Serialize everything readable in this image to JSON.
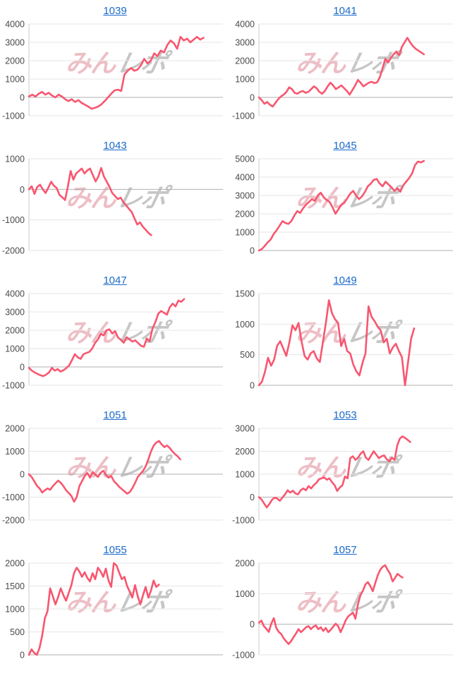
{
  "watermark": {
    "part1": "みん",
    "part2": "レポ"
  },
  "colors": {
    "line": "#f8566f",
    "link": "#1b6ac9",
    "grid": "#e6e6e6",
    "zero_line": "#b0b0b0",
    "axis_line": "#cccccc",
    "tick_text": "#4a4a4a",
    "watermark_pink": "#dd7f8c",
    "watermark_gray": "#8f8f8f"
  },
  "chart_data": [
    {
      "type": "line",
      "title": "1039",
      "xlabel": "",
      "ylabel": "",
      "ylim": [
        -1000,
        4000
      ],
      "yticks": [
        4000,
        3000,
        2000,
        1000,
        0,
        -1000
      ],
      "grid": true,
      "x_end": 0.9,
      "values": [
        50,
        150,
        50,
        200,
        300,
        150,
        250,
        100,
        0,
        150,
        50,
        -100,
        -200,
        -100,
        -250,
        -150,
        -300,
        -400,
        -500,
        -620,
        -570,
        -500,
        -380,
        -200,
        0,
        200,
        380,
        420,
        350,
        1250,
        1450,
        1600,
        1450,
        1520,
        1750,
        2100,
        1850,
        2000,
        2400,
        2250,
        2550,
        2450,
        2850,
        3100,
        2950,
        2650,
        3300,
        3100,
        3200,
        3000,
        3150,
        3300,
        3150,
        3250
      ]
    },
    {
      "type": "line",
      "title": "1041",
      "xlabel": "",
      "ylabel": "",
      "ylim": [
        -1000,
        4000
      ],
      "yticks": [
        4000,
        3000,
        2000,
        1000,
        0,
        -1000
      ],
      "grid": true,
      "x_end": 0.85,
      "values": [
        0,
        -150,
        -350,
        -250,
        -400,
        -500,
        -300,
        -100,
        50,
        150,
        300,
        550,
        450,
        250,
        200,
        300,
        350,
        250,
        300,
        450,
        600,
        500,
        300,
        200,
        350,
        600,
        800,
        650,
        450,
        550,
        650,
        500,
        350,
        150,
        400,
        650,
        950,
        800,
        600,
        700,
        800,
        850,
        780,
        820,
        1100,
        1600,
        2100,
        1900,
        2150,
        2350,
        2500,
        2300,
        2750,
        3000,
        3250,
        3000,
        2800,
        2650,
        2550,
        2450,
        2350
      ]
    },
    {
      "type": "line",
      "title": "1043",
      "xlabel": "",
      "ylabel": "",
      "ylim": [
        -2000,
        1000
      ],
      "yticks": [
        1000,
        0,
        -1000,
        -2000
      ],
      "grid": true,
      "x_end": 0.63,
      "values": [
        0,
        100,
        -150,
        80,
        150,
        0,
        -120,
        60,
        250,
        120,
        40,
        -180,
        -260,
        -350,
        80,
        600,
        320,
        520,
        600,
        680,
        520,
        620,
        680,
        470,
        260,
        420,
        700,
        420,
        250,
        80,
        -120,
        -220,
        -320,
        -270,
        -420,
        -520,
        -640,
        -740,
        -950,
        -1150,
        -1080,
        -1220,
        -1320,
        -1420,
        -1500
      ]
    },
    {
      "type": "line",
      "title": "1045",
      "xlabel": "",
      "ylabel": "",
      "ylim": [
        0,
        5000
      ],
      "yticks": [
        5000,
        4000,
        3000,
        2000,
        1000,
        0
      ],
      "grid": true,
      "x_end": 0.85,
      "values": [
        0,
        80,
        250,
        450,
        600,
        900,
        1100,
        1350,
        1600,
        1500,
        1450,
        1600,
        1900,
        2150,
        2050,
        2300,
        2500,
        2650,
        2800,
        2700,
        3000,
        3150,
        2900,
        2750,
        2650,
        2350,
        2000,
        2250,
        2500,
        2600,
        2850,
        3100,
        3250,
        3000,
        2800,
        2950,
        3200,
        3500,
        3650,
        3850,
        3900,
        3650,
        3500,
        3750,
        3600,
        3450,
        3250,
        3400,
        3200,
        3550,
        3750,
        3950,
        4200,
        4650,
        4850,
        4800,
        4880
      ]
    },
    {
      "type": "line",
      "title": "1047",
      "xlabel": "",
      "ylabel": "",
      "ylim": [
        -1000,
        4000
      ],
      "yticks": [
        4000,
        3000,
        2000,
        1000,
        0,
        -1000
      ],
      "grid": true,
      "x_end": 0.8,
      "values": [
        -50,
        -200,
        -300,
        -380,
        -450,
        -500,
        -420,
        -300,
        -50,
        -200,
        -120,
        -250,
        -180,
        -60,
        80,
        380,
        700,
        520,
        440,
        700,
        760,
        820,
        1000,
        1300,
        1500,
        1800,
        1720,
        2000,
        2050,
        1820,
        1950,
        1600,
        1480,
        1320,
        1620,
        1500,
        1380,
        1450,
        1300,
        1150,
        1100,
        1550,
        1400,
        2100,
        2450,
        2900,
        3050,
        2950,
        2850,
        3250,
        3450,
        3300,
        3620,
        3550,
        3700
      ]
    },
    {
      "type": "line",
      "title": "1049",
      "xlabel": "",
      "ylabel": "",
      "ylim": [
        0,
        1500
      ],
      "yticks": [
        1500,
        1000,
        500,
        0
      ],
      "grid": true,
      "x_end": 0.8,
      "values": [
        0,
        60,
        220,
        450,
        320,
        420,
        650,
        720,
        600,
        480,
        700,
        980,
        900,
        1020,
        720,
        480,
        420,
        520,
        560,
        440,
        380,
        700,
        1020,
        1390,
        1180,
        1080,
        1020,
        640,
        760,
        560,
        520,
        340,
        230,
        160,
        360,
        520,
        1290,
        1120,
        1050,
        960,
        900,
        700,
        760,
        520,
        620,
        680,
        560,
        460,
        0,
        380,
        760,
        930
      ]
    },
    {
      "type": "line",
      "title": "1051",
      "xlabel": "",
      "ylabel": "",
      "ylim": [
        -2000,
        2000
      ],
      "yticks": [
        2000,
        1000,
        0,
        -1000,
        -2000
      ],
      "grid": true,
      "x_end": 0.78,
      "values": [
        0,
        -120,
        -300,
        -500,
        -620,
        -800,
        -700,
        -620,
        -680,
        -520,
        -400,
        -280,
        -380,
        -520,
        -700,
        -820,
        -950,
        -1200,
        -1000,
        -520,
        -300,
        -80,
        50,
        -150,
        100,
        -20,
        -120,
        60,
        150,
        -30,
        -150,
        -80,
        -300,
        -420,
        -550,
        -650,
        -750,
        -850,
        -780,
        -600,
        -380,
        -120,
        20,
        150,
        350,
        650,
        1000,
        1250,
        1380,
        1450,
        1300,
        1180,
        1250,
        1150,
        1000,
        880,
        780,
        650
      ]
    },
    {
      "type": "line",
      "title": "1053",
      "xlabel": "",
      "ylabel": "",
      "ylim": [
        -1000,
        3000
      ],
      "yticks": [
        3000,
        2000,
        1000,
        0,
        -1000
      ],
      "grid": true,
      "x_end": 0.78,
      "values": [
        0,
        -100,
        -280,
        -450,
        -300,
        -120,
        -20,
        -60,
        -160,
        -20,
        120,
        300,
        200,
        280,
        160,
        120,
        300,
        380,
        300,
        480,
        380,
        520,
        620,
        780,
        820,
        860,
        760,
        820,
        650,
        520,
        270,
        420,
        520,
        900,
        820,
        1700,
        1780,
        1620,
        1720,
        1900,
        2000,
        1720,
        1620,
        1820,
        2000,
        1850,
        1700,
        1780,
        1820,
        1650,
        1560,
        1720,
        1620,
        2250,
        2550,
        2650,
        2580,
        2500,
        2400
      ]
    },
    {
      "type": "line",
      "title": "1055",
      "xlabel": "",
      "ylabel": "",
      "ylim": [
        0,
        2000
      ],
      "yticks": [
        2000,
        1500,
        1000,
        500,
        0
      ],
      "grid": true,
      "x_end": 0.67,
      "values": [
        0,
        120,
        40,
        0,
        150,
        420,
        800,
        950,
        1450,
        1280,
        1100,
        1260,
        1450,
        1300,
        1180,
        1350,
        1520,
        1780,
        1900,
        1820,
        1700,
        1800,
        1680,
        1600,
        1780,
        1650,
        1900,
        1820,
        1700,
        1880,
        1620,
        1480,
        2000,
        1950,
        1800,
        1650,
        1700,
        1500,
        1380,
        1250,
        1520,
        1280,
        1100,
        1300,
        1480,
        1250,
        1400,
        1620,
        1480,
        1530
      ]
    },
    {
      "type": "line",
      "title": "1057",
      "xlabel": "",
      "ylabel": "",
      "ylim": [
        -1000,
        2000
      ],
      "yticks": [
        2000,
        1000,
        0,
        -1000
      ],
      "grid": true,
      "x_end": 0.74,
      "values": [
        50,
        120,
        -60,
        -150,
        -250,
        20,
        200,
        -120,
        -250,
        -320,
        -460,
        -560,
        -650,
        -550,
        -420,
        -300,
        -160,
        -260,
        -180,
        -100,
        -60,
        -160,
        -80,
        -40,
        -160,
        -100,
        -220,
        -120,
        -260,
        -180,
        -80,
        20,
        -60,
        -260,
        -80,
        120,
        250,
        320,
        380,
        180,
        650,
        950,
        1100,
        1300,
        1380,
        1250,
        1080,
        1350,
        1600,
        1780,
        1880,
        1930,
        1780,
        1650,
        1400,
        1520,
        1650,
        1580,
        1530
      ]
    }
  ]
}
